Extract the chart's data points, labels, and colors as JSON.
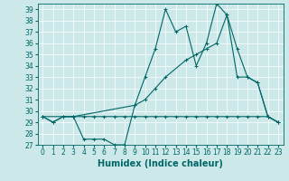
{
  "xlabel": "Humidex (Indice chaleur)",
  "bg_color": "#cce8e8",
  "line_color": "#006666",
  "grid_color": "#b0d8d8",
  "xlim": [
    -0.5,
    23.5
  ],
  "ylim": [
    27,
    39.5
  ],
  "yticks": [
    27,
    28,
    29,
    30,
    31,
    32,
    33,
    34,
    35,
    36,
    37,
    38,
    39
  ],
  "xticks": [
    0,
    1,
    2,
    3,
    4,
    5,
    6,
    7,
    8,
    9,
    10,
    11,
    12,
    13,
    14,
    15,
    16,
    17,
    18,
    19,
    20,
    21,
    22,
    23
  ],
  "line1_x": [
    0,
    1,
    2,
    3,
    4,
    5,
    6,
    7,
    8,
    9,
    10,
    11,
    12,
    13,
    14,
    15,
    16,
    17,
    18,
    19,
    20,
    21,
    22,
    23
  ],
  "line1_y": [
    29.5,
    29.0,
    29.5,
    29.5,
    27.5,
    27.5,
    27.5,
    27.0,
    27.0,
    30.5,
    33.0,
    35.5,
    39.0,
    37.0,
    37.5,
    34.0,
    36.0,
    39.5,
    38.5,
    35.5,
    33.0,
    32.5,
    29.5,
    29.0
  ],
  "line2_x": [
    0,
    1,
    2,
    3,
    4,
    5,
    6,
    7,
    8,
    9,
    10,
    11,
    12,
    13,
    14,
    15,
    16,
    17,
    18,
    19,
    20,
    21,
    22,
    23
  ],
  "line2_y": [
    29.5,
    29.0,
    29.5,
    29.5,
    29.5,
    29.5,
    29.5,
    29.5,
    29.5,
    29.5,
    29.5,
    29.5,
    29.5,
    29.5,
    29.5,
    29.5,
    29.5,
    29.5,
    29.5,
    29.5,
    29.5,
    29.5,
    29.5,
    29.0
  ],
  "line3_x": [
    0,
    3,
    9,
    10,
    11,
    12,
    14,
    15,
    16,
    17,
    18,
    19,
    20,
    21,
    22,
    23
  ],
  "line3_y": [
    29.5,
    29.5,
    30.5,
    31.0,
    32.0,
    33.0,
    34.5,
    35.0,
    35.5,
    36.0,
    38.5,
    33.0,
    33.0,
    32.5,
    29.5,
    29.0
  ],
  "xlabel_fontsize": 7,
  "tick_fontsize": 5.5
}
